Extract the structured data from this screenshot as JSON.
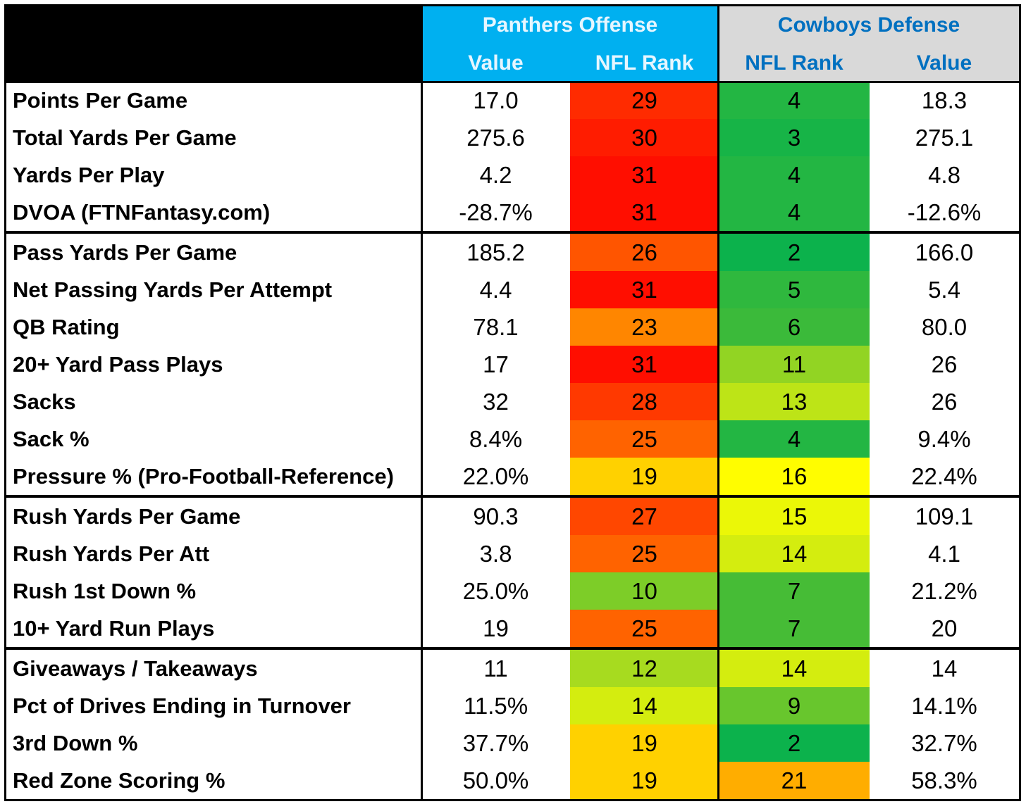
{
  "chart_data": {
    "type": "table",
    "colors": {
      "header_black": "#000000",
      "panthers_header_bg": "#00b0f0",
      "panthers_header_text": "#e6f6ff",
      "cowboys_header_bg": "#d9d9d9",
      "cowboys_header_text": "#0070c0"
    },
    "header": {
      "panthers_title": "Panthers Offense",
      "cowboys_title": "Cowboys Defense",
      "columns": [
        "Value",
        "NFL Rank",
        "NFL Rank",
        "Value"
      ]
    },
    "sections": [
      {
        "rows": [
          {
            "label": "Points Per Game",
            "car_value": "17.0",
            "car_rank": 29,
            "dal_rank": 4,
            "dal_value": "18.3"
          },
          {
            "label": "Total Yards Per Game",
            "car_value": "275.6",
            "car_rank": 30,
            "dal_rank": 3,
            "dal_value": "275.1"
          },
          {
            "label": "Yards Per Play",
            "car_value": "4.2",
            "car_rank": 31,
            "dal_rank": 4,
            "dal_value": "4.8"
          },
          {
            "label": "DVOA (FTNFantasy.com)",
            "car_value": "-28.7%",
            "car_rank": 31,
            "dal_rank": 4,
            "dal_value": "-12.6%"
          }
        ]
      },
      {
        "rows": [
          {
            "label": "Pass Yards Per Game",
            "car_value": "185.2",
            "car_rank": 26,
            "dal_rank": 2,
            "dal_value": "166.0"
          },
          {
            "label": "Net Passing Yards Per Attempt",
            "car_value": "4.4",
            "car_rank": 31,
            "dal_rank": 5,
            "dal_value": "5.4"
          },
          {
            "label": "QB Rating",
            "car_value": "78.1",
            "car_rank": 23,
            "dal_rank": 6,
            "dal_value": "80.0"
          },
          {
            "label": "20+ Yard Pass Plays",
            "car_value": "17",
            "car_rank": 31,
            "dal_rank": 11,
            "dal_value": "26"
          },
          {
            "label": "Sacks",
            "car_value": "32",
            "car_rank": 28,
            "dal_rank": 13,
            "dal_value": "26"
          },
          {
            "label": "Sack %",
            "car_value": "8.4%",
            "car_rank": 25,
            "dal_rank": 4,
            "dal_value": "9.4%"
          },
          {
            "label": "Pressure % (Pro-Football-Reference)",
            "car_value": "22.0%",
            "car_rank": 19,
            "dal_rank": 16,
            "dal_value": "22.4%"
          }
        ]
      },
      {
        "rows": [
          {
            "label": "Rush Yards Per Game",
            "car_value": "90.3",
            "car_rank": 27,
            "dal_rank": 15,
            "dal_value": "109.1"
          },
          {
            "label": "Rush Yards Per Att",
            "car_value": "3.8",
            "car_rank": 25,
            "dal_rank": 14,
            "dal_value": "4.1"
          },
          {
            "label": "Rush 1st Down %",
            "car_value": "25.0%",
            "car_rank": 10,
            "dal_rank": 7,
            "dal_value": "21.2%"
          },
          {
            "label": "10+ Yard Run Plays",
            "car_value": "19",
            "car_rank": 25,
            "dal_rank": 7,
            "dal_value": "20"
          }
        ]
      },
      {
        "rows": [
          {
            "label": "Giveaways / Takeaways",
            "car_value": "11",
            "car_rank": 12,
            "dal_rank": 14,
            "dal_value": "14"
          },
          {
            "label": "Pct of Drives Ending in Turnover",
            "car_value": "11.5%",
            "car_rank": 14,
            "dal_rank": 9,
            "dal_value": "14.1%"
          },
          {
            "label": "3rd Down %",
            "car_value": "37.7%",
            "car_rank": 19,
            "dal_rank": 2,
            "dal_value": "32.7%"
          },
          {
            "label": "Red Zone Scoring %",
            "car_value": "50.0%",
            "car_rank": 19,
            "dal_rank": 21,
            "dal_value": "58.3%"
          }
        ]
      }
    ]
  }
}
